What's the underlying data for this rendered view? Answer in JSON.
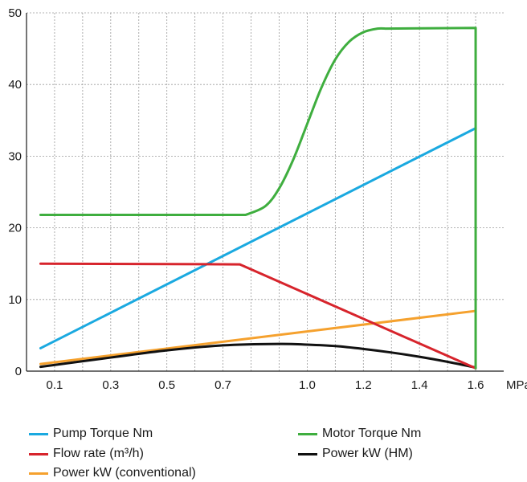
{
  "chart_data": {
    "type": "line",
    "title": "",
    "xlabel": "",
    "x_unit": "MPa",
    "ylabel": "",
    "xlim": [
      0,
      1.7
    ],
    "ylim": [
      0,
      50
    ],
    "x_ticks": [
      "0.1",
      "0.3",
      "0.5",
      "0.7",
      "1.0",
      "1.2",
      "1.4",
      "1.6"
    ],
    "x_tick_values": [
      0.1,
      0.3,
      0.5,
      0.7,
      1.0,
      1.2,
      1.4,
      1.6
    ],
    "y_ticks": [
      "0",
      "10",
      "20",
      "30",
      "40",
      "50"
    ],
    "y_tick_values": [
      0,
      10,
      20,
      30,
      40,
      50
    ],
    "grid": true,
    "legend_position": "bottom",
    "series": [
      {
        "name": "Pump Torque Nm",
        "color": "#1aa9e0",
        "x": [
          0.05,
          1.6
        ],
        "y": [
          3.2,
          33.9
        ]
      },
      {
        "name": "Motor Torque Nm",
        "color": "#3fae3f",
        "x": [
          0.05,
          0.78,
          0.85,
          0.9,
          0.95,
          1.0,
          1.05,
          1.1,
          1.15,
          1.2,
          1.25,
          1.28,
          1.6,
          1.6
        ],
        "y": [
          21.8,
          21.8,
          23.0,
          25.5,
          29.5,
          34.5,
          39.5,
          43.5,
          46.0,
          47.3,
          47.8,
          47.8,
          47.9,
          0.4
        ]
      },
      {
        "name": "Flow rate (m³/h)",
        "color": "#d7242c",
        "x": [
          0.05,
          0.76,
          1.6
        ],
        "y": [
          15.0,
          14.9,
          0.4
        ]
      },
      {
        "name": "Power kW (HM)",
        "color": "#111111",
        "x": [
          0.05,
          0.3,
          0.5,
          0.7,
          0.9,
          1.0,
          1.1,
          1.2,
          1.3,
          1.4,
          1.5,
          1.6
        ],
        "y": [
          0.6,
          1.9,
          2.9,
          3.6,
          3.8,
          3.7,
          3.5,
          3.1,
          2.6,
          2.0,
          1.3,
          0.5
        ]
      },
      {
        "name": "Power kW (conventional)",
        "color": "#f5a12e",
        "x": [
          0.05,
          1.6
        ],
        "y": [
          1.0,
          8.4
        ]
      }
    ]
  },
  "legend": [
    {
      "label": "Pump Torque Nm",
      "color": "#1aa9e0"
    },
    {
      "label": "Motor Torque Nm",
      "color": "#3fae3f"
    },
    {
      "label": "Flow rate (m³/h)",
      "color": "#d7242c"
    },
    {
      "label": "Power kW (HM)",
      "color": "#111111"
    },
    {
      "label": "Power kW (conventional)",
      "color": "#f5a12e"
    }
  ]
}
